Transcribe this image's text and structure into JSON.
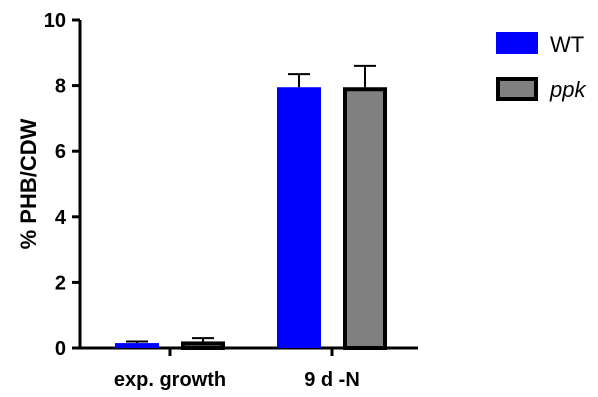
{
  "chart_data": {
    "type": "bar",
    "title": "",
    "xlabel": "",
    "ylabel": "% PHB/CDW",
    "ylim": [
      0,
      10
    ],
    "yticks": [
      0,
      2,
      4,
      6,
      8,
      10
    ],
    "categories": [
      "exp. growth",
      "9 d -N"
    ],
    "series": [
      {
        "name": "WT",
        "values": [
          0.15,
          7.95
        ],
        "errors": [
          0.05,
          0.4
        ],
        "color": "#0000ff",
        "edge": "#0000ff",
        "italic": false
      },
      {
        "name": "ppk",
        "values": [
          0.2,
          7.95
        ],
        "errors": [
          0.1,
          0.65
        ],
        "color": "#808080",
        "edge": "#000000",
        "italic": true
      }
    ],
    "legend_position": "top-right",
    "grid": false
  }
}
